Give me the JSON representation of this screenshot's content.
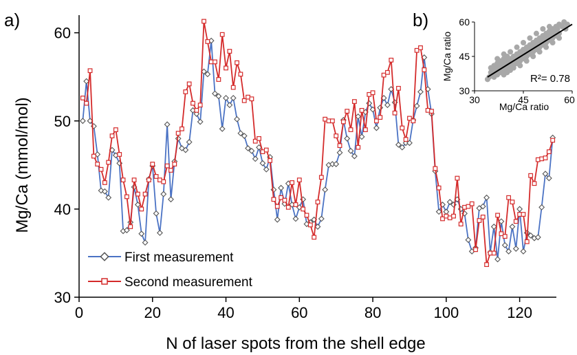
{
  "chart_data": [
    {
      "panel": "a)",
      "type": "line",
      "xlabel": "N of laser spots from the shell edge",
      "ylabel": "Mg/Ca (mmol/mol)",
      "xlim": [
        0,
        130
      ],
      "ylim": [
        30,
        62
      ],
      "xticks": [
        0,
        20,
        40,
        60,
        80,
        100,
        120
      ],
      "yticks": [
        30,
        40,
        50,
        60
      ],
      "legend_position": "bottom-left",
      "series": [
        {
          "name": "First measurement",
          "color": "#4a72c4",
          "marker": "diamond",
          "x": [
            1,
            2,
            3,
            4,
            5,
            6,
            7,
            8,
            9,
            10,
            11,
            12,
            13,
            14,
            15,
            16,
            17,
            18,
            19,
            20,
            21,
            22,
            23,
            24,
            25,
            26,
            27,
            28,
            29,
            30,
            31,
            32,
            33,
            34,
            35,
            36,
            37,
            38,
            39,
            40,
            41,
            42,
            43,
            44,
            45,
            46,
            47,
            48,
            49,
            50,
            51,
            52,
            53,
            54,
            55,
            56,
            57,
            58,
            59,
            60,
            61,
            62,
            63,
            64,
            65,
            66,
            67,
            68,
            69,
            70,
            71,
            72,
            73,
            74,
            75,
            76,
            77,
            78,
            79,
            80,
            81,
            82,
            83,
            84,
            85,
            86,
            87,
            88,
            89,
            90,
            91,
            92,
            93,
            94,
            95,
            96,
            97,
            98,
            99,
            100,
            101,
            102,
            103,
            104,
            105,
            106,
            107,
            108,
            109,
            110,
            111,
            112,
            113,
            114,
            115,
            116,
            117,
            118,
            119,
            120,
            121,
            122,
            123,
            124,
            125,
            126,
            127,
            128,
            129
          ],
          "values": [
            50.0,
            54.5,
            50.0,
            49.4,
            46.2,
            42.1,
            42.0,
            41.3,
            46.7,
            46.1,
            45.2,
            37.5,
            37.6,
            38.5,
            42.5,
            40.5,
            37.2,
            36.2,
            43.4,
            44.9,
            39.5,
            37.3,
            41.7,
            49.6,
            41.1,
            45.4,
            48.0,
            46.9,
            46.7,
            47.6,
            51.2,
            50.8,
            49.9,
            55.6,
            55.3,
            59.1,
            53.1,
            52.8,
            49.1,
            52.6,
            51.8,
            52.6,
            50.2,
            48.6,
            48.3,
            46.9,
            46.6,
            45.7,
            47.0,
            45.2,
            44.5,
            45.9,
            42.2,
            38.8,
            42.4,
            40.6,
            42.9,
            40.5,
            38.9,
            40.2,
            41.1,
            38.3,
            38.5,
            38.8,
            38.0,
            38.9,
            42.2,
            45.0,
            45.1,
            45.1,
            46.4,
            50.1,
            48.0,
            46.6,
            46.0,
            50.5,
            48.2,
            51.0,
            52.0,
            51.3,
            49.2,
            51.5,
            52.6,
            51.8,
            53.6,
            52.1,
            47.3,
            47.0,
            47.5,
            47.5,
            50.1,
            51.7,
            53.3,
            57.2,
            53.6,
            50.8,
            44.3,
            39.7,
            40.5,
            39.7,
            40.8,
            40.5,
            41.1,
            40.0,
            39.5,
            36.5,
            35.2,
            35.6,
            40.1,
            40.3,
            41.3,
            35.1,
            38.0,
            34.3,
            38.6,
            35.9,
            35.2,
            38.0,
            35.5,
            40.0,
            35.2,
            37.3,
            37.0,
            36.7,
            36.8,
            40.2,
            44.0,
            43.5,
            48.1
          ]
        },
        {
          "name": "Second measurement",
          "color": "#d42a2a",
          "marker": "square",
          "x": [
            1,
            2,
            3,
            4,
            5,
            6,
            7,
            8,
            9,
            10,
            11,
            12,
            13,
            14,
            15,
            16,
            17,
            18,
            19,
            20,
            21,
            22,
            23,
            24,
            25,
            26,
            27,
            28,
            29,
            30,
            31,
            32,
            33,
            34,
            35,
            36,
            37,
            38,
            39,
            40,
            41,
            42,
            43,
            44,
            45,
            46,
            47,
            48,
            49,
            50,
            51,
            52,
            53,
            54,
            55,
            56,
            57,
            58,
            59,
            60,
            61,
            62,
            63,
            64,
            65,
            66,
            67,
            68,
            69,
            70,
            71,
            72,
            73,
            74,
            75,
            76,
            77,
            78,
            79,
            80,
            81,
            82,
            83,
            84,
            85,
            86,
            87,
            88,
            89,
            90,
            91,
            92,
            93,
            94,
            95,
            96,
            97,
            98,
            99,
            100,
            101,
            102,
            103,
            104,
            105,
            106,
            107,
            108,
            109,
            110,
            111,
            112,
            113,
            114,
            115,
            116,
            117,
            118,
            119,
            120,
            121,
            122,
            123,
            124,
            125,
            126,
            127,
            128,
            129
          ],
          "values": [
            52.6,
            52.0,
            55.7,
            46.0,
            45.1,
            44.5,
            43.0,
            45.3,
            48.3,
            49.0,
            46.2,
            43.3,
            41.4,
            38.0,
            43.3,
            41.7,
            40.0,
            41.7,
            43.3,
            45.1,
            43.7,
            43.3,
            43.1,
            44.9,
            44.4,
            45.1,
            48.6,
            49.1,
            53.3,
            54.2,
            52.0,
            51.2,
            51.8,
            61.3,
            59.0,
            56.7,
            56.7,
            54.7,
            59.8,
            56.0,
            57.9,
            53.8,
            56.6,
            55.3,
            52.3,
            52.7,
            52.5,
            47.7,
            48.0,
            46.5,
            46.7,
            45.5,
            41.1,
            40.3,
            41.3,
            41.0,
            40.2,
            43.0,
            40.5,
            43.3,
            40.0,
            39.3,
            38.2,
            36.8,
            40.8,
            43.6,
            50.2,
            50.0,
            50.0,
            48.3,
            47.2,
            49.9,
            51.1,
            49.0,
            52.2,
            47.0,
            51.2,
            49.0,
            53.0,
            53.2,
            50.0,
            50.4,
            55.2,
            55.5,
            56.9,
            50.9,
            53.7,
            49.2,
            47.9,
            50.3,
            50.0,
            58.0,
            58.3,
            55.8,
            51.2,
            51.1,
            44.6,
            42.4,
            38.9,
            39.2,
            39.0,
            39.2,
            43.5,
            38.3,
            40.2,
            40.3,
            40.6,
            35.4,
            38.7,
            39.1,
            33.7,
            35.0,
            35.0,
            39.3,
            37.2,
            36.9,
            41.3,
            40.8,
            38.6,
            39.4,
            39.4,
            36.3,
            43.8,
            42.9,
            45.6,
            45.7,
            45.8,
            46.5,
            47.8
          ]
        }
      ]
    },
    {
      "panel": "b)",
      "type": "scatter",
      "xlabel": "Mg/Ca ratio",
      "ylabel": "Mg/Ca ratio",
      "xlim": [
        30,
        60
      ],
      "ylim": [
        30,
        60
      ],
      "xticks": [
        30,
        45,
        60
      ],
      "yticks": [
        30,
        45,
        60
      ],
      "point_color": "#a8a8a8",
      "fit_line": {
        "from": [
          34,
          36
        ],
        "to": [
          60,
          59
        ]
      },
      "annotation": "R²= 0.78",
      "points": [
        [
          34,
          35
        ],
        [
          34.5,
          36
        ],
        [
          35,
          38
        ],
        [
          35.5,
          37
        ],
        [
          36,
          39
        ],
        [
          36,
          41
        ],
        [
          36.5,
          38
        ],
        [
          37,
          40
        ],
        [
          37,
          42
        ],
        [
          37.5,
          39
        ],
        [
          38,
          41
        ],
        [
          38,
          43
        ],
        [
          38.5,
          40
        ],
        [
          39,
          42
        ],
        [
          39,
          44
        ],
        [
          39.5,
          41
        ],
        [
          40,
          43
        ],
        [
          40,
          45
        ],
        [
          40.5,
          42
        ],
        [
          41,
          44
        ],
        [
          41,
          40
        ],
        [
          41.5,
          43
        ],
        [
          42,
          45
        ],
        [
          42,
          41
        ],
        [
          42.5,
          44
        ],
        [
          43,
          46
        ],
        [
          43,
          42
        ],
        [
          43.5,
          45
        ],
        [
          44,
          47
        ],
        [
          44,
          43
        ],
        [
          44.5,
          46
        ],
        [
          45,
          48
        ],
        [
          45,
          44
        ],
        [
          45.5,
          47
        ],
        [
          46,
          49
        ],
        [
          46,
          45
        ],
        [
          46.5,
          48
        ],
        [
          47,
          50
        ],
        [
          47,
          46
        ],
        [
          47.5,
          49
        ],
        [
          48,
          51
        ],
        [
          48,
          47
        ],
        [
          48.5,
          50
        ],
        [
          49,
          52
        ],
        [
          49,
          48
        ],
        [
          49.5,
          51
        ],
        [
          50,
          53
        ],
        [
          50,
          49
        ],
        [
          50.5,
          52
        ],
        [
          51,
          54
        ],
        [
          51,
          50
        ],
        [
          51.5,
          53
        ],
        [
          52,
          55
        ],
        [
          52,
          51
        ],
        [
          52.5,
          54
        ],
        [
          53,
          56
        ],
        [
          53,
          52
        ],
        [
          53.5,
          55
        ],
        [
          54,
          57
        ],
        [
          54,
          53
        ],
        [
          54.5,
          56
        ],
        [
          55,
          58
        ],
        [
          55,
          54
        ],
        [
          55.5,
          57
        ],
        [
          56,
          59
        ],
        [
          56,
          55
        ],
        [
          57,
          58
        ],
        [
          57.5,
          60
        ],
        [
          58,
          57
        ],
        [
          58.5,
          59
        ],
        [
          36,
          36
        ],
        [
          37,
          37
        ],
        [
          38,
          38
        ],
        [
          39,
          39
        ],
        [
          40,
          40
        ],
        [
          41,
          41
        ],
        [
          42,
          42
        ],
        [
          43,
          43
        ],
        [
          44,
          44
        ],
        [
          46,
          46
        ],
        [
          47,
          47
        ],
        [
          48,
          48
        ],
        [
          49,
          49
        ],
        [
          50,
          50
        ],
        [
          51,
          51
        ],
        [
          52,
          52
        ],
        [
          53,
          53
        ],
        [
          54,
          54
        ],
        [
          55,
          55
        ],
        [
          39,
          37
        ],
        [
          40,
          38
        ],
        [
          41,
          39
        ],
        [
          42,
          40
        ],
        [
          44,
          41
        ],
        [
          46,
          43
        ],
        [
          48,
          45
        ],
        [
          50,
          47
        ],
        [
          52,
          49
        ],
        [
          54,
          51
        ],
        [
          56,
          53
        ],
        [
          35,
          40
        ],
        [
          37,
          44
        ],
        [
          39,
          46
        ],
        [
          41,
          47
        ],
        [
          43,
          49
        ],
        [
          45,
          51
        ],
        [
          47,
          53
        ],
        [
          49,
          55
        ],
        [
          51,
          57
        ],
        [
          53,
          58
        ]
      ]
    }
  ]
}
